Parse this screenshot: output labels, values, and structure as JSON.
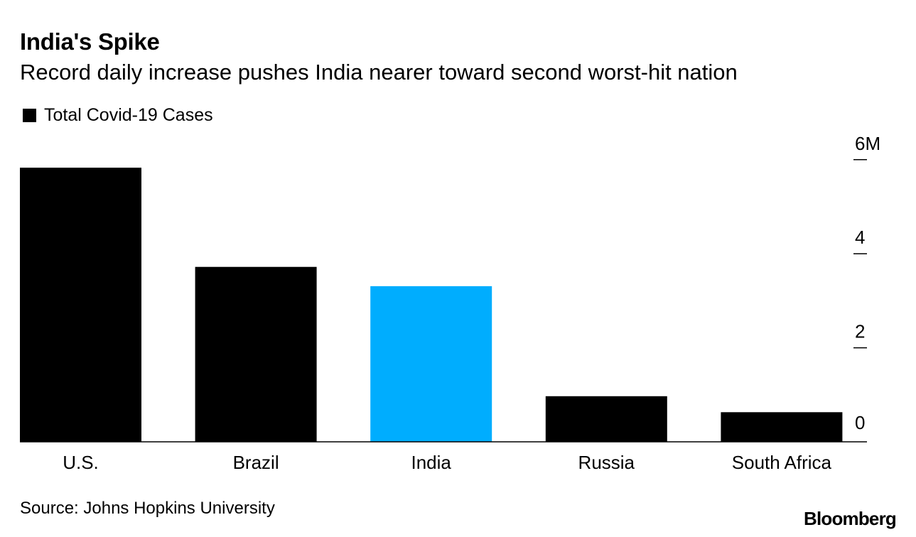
{
  "header": {
    "title": "India's Spike",
    "subtitle": "Record daily increase pushes India nearer toward second worst-hit nation"
  },
  "legend": {
    "label": "Total Covid-19 Cases",
    "color": "#000000"
  },
  "footer": {
    "source": "Source: Johns Hopkins University",
    "brand": "Bloomberg"
  },
  "chart_data": {
    "type": "bar",
    "title": "India's Spike",
    "subtitle": "Record daily increase pushes India nearer toward second worst-hit nation",
    "categories": [
      "U.S.",
      "Brazil",
      "India",
      "Russia",
      "South Africa"
    ],
    "values": [
      5.83,
      3.72,
      3.31,
      0.97,
      0.63
    ],
    "units": "million cases",
    "series": [
      {
        "name": "Total Covid-19 Cases",
        "values": [
          5.83,
          3.72,
          3.31,
          0.97,
          0.63
        ]
      }
    ],
    "colors": [
      "#000000",
      "#000000",
      "#00adfe",
      "#000000",
      "#000000"
    ],
    "ylim": [
      0,
      6
    ],
    "yticks": [
      0,
      2,
      4,
      6
    ],
    "ytick_labels": [
      "0",
      "2",
      "4",
      "6M"
    ],
    "y_axis_position": "right",
    "xlabel": "",
    "ylabel": "",
    "grid": false
  }
}
